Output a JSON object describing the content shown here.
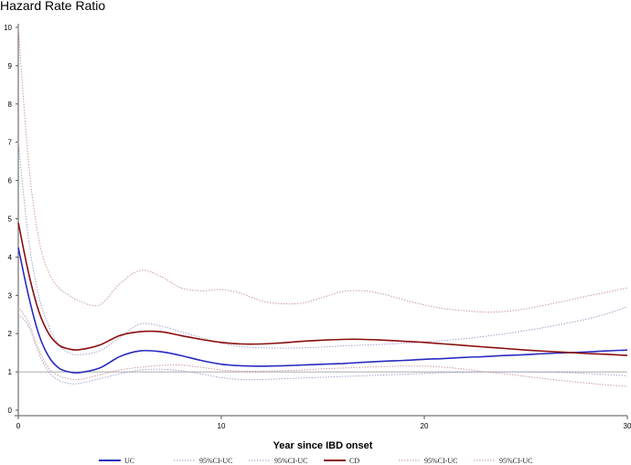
{
  "chart_data": {
    "type": "line",
    "title": "Hazard Rate Ratio",
    "xlabel": "Year since IBD onset",
    "ylabel": "",
    "xlim": [
      0,
      30
    ],
    "ylim": [
      0,
      10
    ],
    "x_ticks": [
      "0",
      "10",
      "20",
      "30"
    ],
    "y_ticks": [
      "0",
      "1",
      "2",
      "3",
      "4",
      "5",
      "6",
      "7",
      "8",
      "9",
      "10"
    ],
    "reference_line_y": 1,
    "grid": false,
    "legend_position": "bottom",
    "x": [
      0,
      0.5,
      1,
      1.5,
      2,
      2.5,
      3,
      4,
      5,
      6,
      7,
      8,
      9,
      10,
      11,
      12,
      13,
      14,
      15,
      16,
      17,
      18,
      19,
      20,
      21,
      22,
      23,
      24,
      25,
      26,
      27,
      28,
      29,
      30
    ],
    "series": [
      {
        "name": "UC",
        "color": "#2a2ac0",
        "style": "solid",
        "width": 1.6,
        "values": [
          4.25,
          3.0,
          2.0,
          1.4,
          1.1,
          1.0,
          0.98,
          1.1,
          1.4,
          1.55,
          1.53,
          1.43,
          1.3,
          1.2,
          1.16,
          1.15,
          1.16,
          1.18,
          1.2,
          1.22,
          1.25,
          1.28,
          1.3,
          1.33,
          1.35,
          1.38,
          1.4,
          1.43,
          1.45,
          1.48,
          1.5,
          1.52,
          1.55,
          1.57
        ]
      },
      {
        "name": "95%CI-UC",
        "color": "#9a9ac8",
        "style": "dotted",
        "width": 0.9,
        "values": [
          7.0,
          4.5,
          3.0,
          2.2,
          1.7,
          1.5,
          1.45,
          1.55,
          1.9,
          2.25,
          2.2,
          2.05,
          1.9,
          1.75,
          1.66,
          1.63,
          1.62,
          1.63,
          1.65,
          1.68,
          1.7,
          1.72,
          1.75,
          1.78,
          1.82,
          1.87,
          1.93,
          2.0,
          2.08,
          2.17,
          2.27,
          2.38,
          2.52,
          2.7
        ]
      },
      {
        "name": "95%CI-UC",
        "color": "#9a9ac8",
        "style": "dotted",
        "width": 0.9,
        "values": [
          2.5,
          2.2,
          1.5,
          1.0,
          0.78,
          0.7,
          0.7,
          0.82,
          0.95,
          1.05,
          1.07,
          1.03,
          0.95,
          0.85,
          0.8,
          0.8,
          0.82,
          0.84,
          0.86,
          0.88,
          0.9,
          0.92,
          0.94,
          0.96,
          0.98,
          0.99,
          1.0,
          1.0,
          1.0,
          0.99,
          0.98,
          0.96,
          0.93,
          0.9
        ]
      },
      {
        "name": "CD",
        "color": "#8b0e0e",
        "style": "solid",
        "width": 1.6,
        "values": [
          4.9,
          3.6,
          2.6,
          2.0,
          1.7,
          1.6,
          1.58,
          1.7,
          1.95,
          2.05,
          2.05,
          1.95,
          1.85,
          1.77,
          1.73,
          1.73,
          1.76,
          1.8,
          1.83,
          1.85,
          1.85,
          1.83,
          1.8,
          1.77,
          1.73,
          1.69,
          1.65,
          1.61,
          1.57,
          1.54,
          1.51,
          1.48,
          1.46,
          1.43
        ]
      },
      {
        "name": "95%CI-UC",
        "color": "#c8909a",
        "style": "dotted",
        "width": 0.9,
        "values": [
          10.0,
          6.5,
          4.5,
          3.6,
          3.2,
          3.0,
          2.85,
          2.75,
          3.3,
          3.65,
          3.5,
          3.2,
          3.12,
          3.15,
          3.05,
          2.85,
          2.78,
          2.8,
          2.95,
          3.1,
          3.12,
          3.03,
          2.88,
          2.75,
          2.65,
          2.6,
          2.56,
          2.58,
          2.65,
          2.75,
          2.86,
          2.98,
          3.08,
          3.2
        ]
      },
      {
        "name": "95%CI-UC",
        "color": "#c8909a",
        "style": "dotted",
        "width": 0.9,
        "values": [
          2.7,
          2.3,
          1.6,
          1.1,
          0.9,
          0.82,
          0.8,
          0.92,
          1.05,
          1.12,
          1.17,
          1.18,
          1.12,
          1.05,
          1.02,
          1.02,
          1.03,
          1.05,
          1.08,
          1.1,
          1.12,
          1.14,
          1.15,
          1.15,
          1.12,
          1.07,
          1.0,
          0.95,
          0.88,
          0.82,
          0.76,
          0.71,
          0.66,
          0.62
        ]
      }
    ]
  }
}
